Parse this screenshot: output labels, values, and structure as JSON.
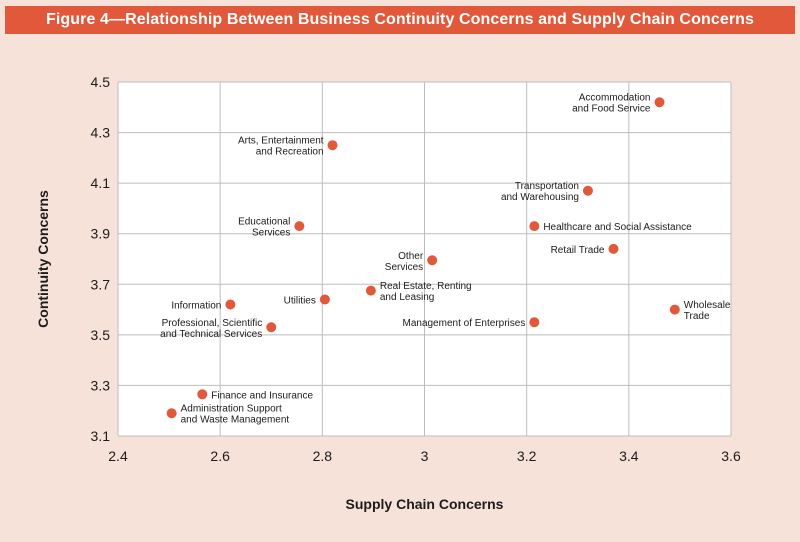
{
  "colors": {
    "background": "#f6e2d8",
    "title_bar": "#e2583b",
    "plot_area": "#ffffff",
    "point": "#e2583b",
    "grid": "#bdbdbd",
    "text": "#1c1c1c"
  },
  "chart_data": {
    "type": "scatter",
    "title": "Figure 4—Relationship Between Business Continuity Concerns and Supply Chain Concerns",
    "xlabel": "Supply Chain Concerns",
    "ylabel": "Continuity Concerns",
    "xlim": [
      2.4,
      3.6
    ],
    "ylim": [
      3.1,
      4.5
    ],
    "xticks": [
      2.4,
      2.6,
      2.8,
      3.0,
      3.2,
      3.4,
      3.6
    ],
    "xtick_labels": [
      "2.4",
      "2.6",
      "2.8",
      "3",
      "3.2",
      "3.4",
      "3.6"
    ],
    "yticks": [
      3.1,
      3.3,
      3.5,
      3.7,
      3.9,
      4.1,
      4.3,
      4.5
    ],
    "ytick_labels": [
      "3.1",
      "3.3",
      "3.5",
      "3.7",
      "3.9",
      "4.1",
      "4.3",
      "4.5"
    ],
    "grid": true,
    "legend": "none",
    "points": [
      {
        "label": [
          "Accommodation",
          "and Food Service"
        ],
        "x": 3.46,
        "y": 4.42,
        "anchor": "left"
      },
      {
        "label": [
          "Arts, Entertainment",
          "and Recreation"
        ],
        "x": 2.82,
        "y": 4.25,
        "anchor": "left"
      },
      {
        "label": [
          "Transportation",
          "and Warehousing"
        ],
        "x": 3.32,
        "y": 4.07,
        "anchor": "left"
      },
      {
        "label": [
          "Educational",
          "Services"
        ],
        "x": 2.755,
        "y": 3.93,
        "anchor": "left"
      },
      {
        "label": [
          "Healthcare and Social Assistance"
        ],
        "x": 3.215,
        "y": 3.93,
        "anchor": "right"
      },
      {
        "label": [
          "Retail Trade"
        ],
        "x": 3.37,
        "y": 3.84,
        "anchor": "left"
      },
      {
        "label": [
          "Other",
          "Services"
        ],
        "x": 3.015,
        "y": 3.795,
        "anchor": "left"
      },
      {
        "label": [
          "Real Estate, Renting",
          "and Leasing"
        ],
        "x": 2.895,
        "y": 3.675,
        "anchor": "right"
      },
      {
        "label": [
          "Utilities"
        ],
        "x": 2.805,
        "y": 3.64,
        "anchor": "left"
      },
      {
        "label": [
          "Information"
        ],
        "x": 2.62,
        "y": 3.62,
        "anchor": "left"
      },
      {
        "label": [
          "Wholesale",
          "Trade"
        ],
        "x": 3.49,
        "y": 3.6,
        "anchor": "right"
      },
      {
        "label": [
          "Management of Enterprises"
        ],
        "x": 3.215,
        "y": 3.55,
        "anchor": "left"
      },
      {
        "label": [
          "Professional, Scientific",
          "and Technical Services"
        ],
        "x": 2.7,
        "y": 3.53,
        "anchor": "left"
      },
      {
        "label": [
          "Finance and Insurance"
        ],
        "x": 2.565,
        "y": 3.265,
        "anchor": "right"
      },
      {
        "label": [
          "Administration Support",
          "and Waste Management"
        ],
        "x": 2.505,
        "y": 3.19,
        "anchor": "right"
      }
    ]
  }
}
